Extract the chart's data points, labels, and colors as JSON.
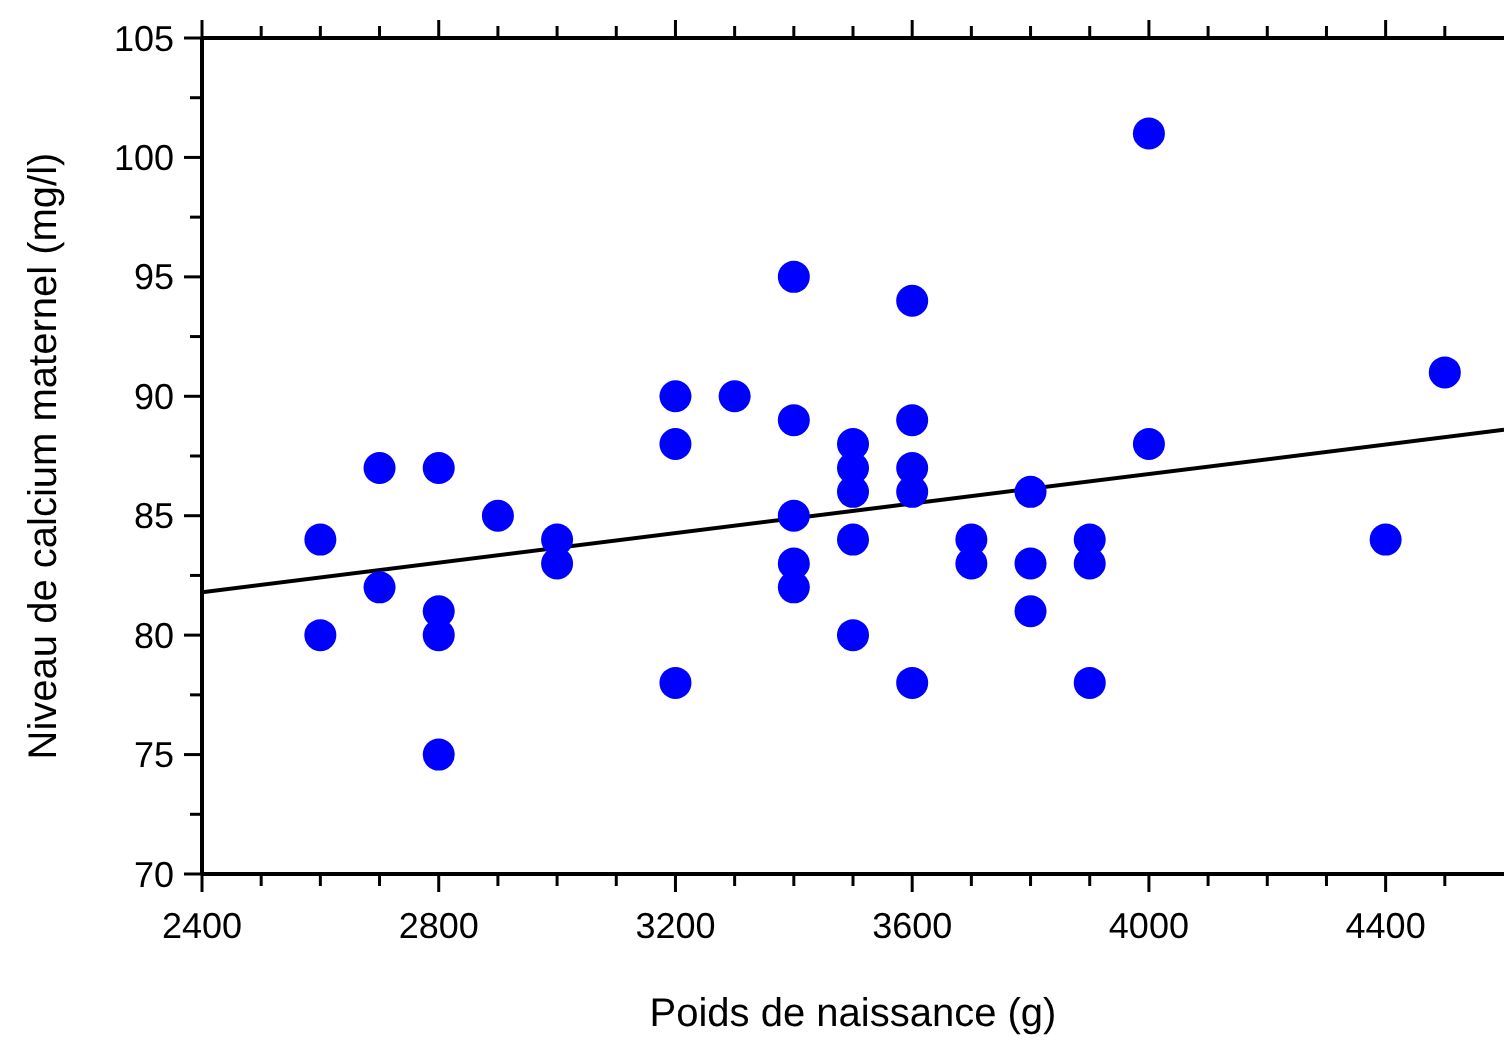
{
  "chart_data": {
    "type": "scatter",
    "xlabel": "Poids de naissance (g)",
    "ylabel": "Niveau de calcium maternel (mg/l)",
    "xlim": [
      2400,
      4600
    ],
    "ylim": [
      70,
      105
    ],
    "xticks": [
      2400,
      {
        "value": 2500,
        "label": null
      },
      {
        "value": 2600,
        "label": null
      },
      {
        "value": 2700,
        "label": null
      },
      2800,
      {
        "value": 2900,
        "label": null
      },
      {
        "value": 3000,
        "label": null
      },
      {
        "value": 3100,
        "label": null
      },
      3200,
      {
        "value": 3300,
        "label": null
      },
      {
        "value": 3400,
        "label": null
      },
      {
        "value": 3500,
        "label": null
      },
      3600,
      {
        "value": 3700,
        "label": null
      },
      {
        "value": 3800,
        "label": null
      },
      {
        "value": 3900,
        "label": null
      },
      4000,
      {
        "value": 4100,
        "label": null
      },
      {
        "value": 4200,
        "label": null
      },
      {
        "value": 4300,
        "label": null
      },
      4400,
      {
        "value": 4500,
        "label": null
      }
    ],
    "yticks": [
      70,
      {
        "value": 72.5,
        "label": null
      },
      75,
      {
        "value": 77.5,
        "label": null
      },
      80,
      {
        "value": 82.5,
        "label": null
      },
      85,
      {
        "value": 87.5,
        "label": null
      },
      90,
      {
        "value": 92.5,
        "label": null
      },
      95,
      {
        "value": 97.5,
        "label": null
      },
      100,
      {
        "value": 102.5,
        "label": null
      },
      105
    ],
    "grid": false,
    "series": [
      {
        "color": "#0000ff",
        "marker": "circle",
        "x": [
          2600,
          2600,
          2700,
          2700,
          2800,
          2800,
          2800,
          2800,
          2900,
          3000,
          3000,
          3200,
          3200,
          3200,
          3300,
          3400,
          3400,
          3400,
          3400,
          3400,
          3500,
          3500,
          3500,
          3500,
          3500,
          3600,
          3600,
          3600,
          3600,
          3600,
          3700,
          3700,
          3800,
          3800,
          3800,
          3900,
          3900,
          3900,
          4000,
          4000,
          4400,
          4500
        ],
        "values": [
          84,
          80,
          87,
          82,
          87,
          81,
          80,
          75,
          85,
          84,
          83,
          90,
          88,
          78,
          90,
          95,
          89,
          85,
          83,
          82,
          88,
          87,
          86,
          84,
          80,
          94,
          89,
          87,
          86,
          78,
          84,
          83,
          86,
          83,
          81,
          84,
          83,
          78,
          101,
          88,
          84,
          91
        ]
      },
      {
        "type": "line",
        "color": "#000000",
        "x": [
          2400,
          4600
        ],
        "values": [
          81.8,
          88.6
        ],
        "marker": "none"
      }
    ]
  }
}
